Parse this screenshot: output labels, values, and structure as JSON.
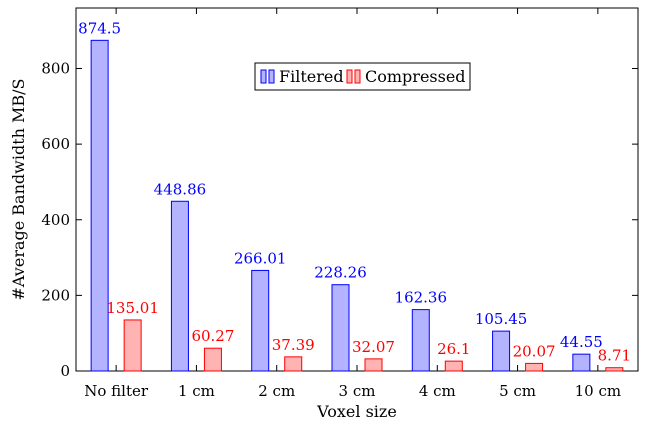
{
  "chart_data": {
    "type": "bar",
    "title": "",
    "xlabel": "Voxel size",
    "ylabel": "#Average Bandwidth MB/S",
    "categories": [
      "No filter",
      "1 cm",
      "2 cm",
      "3 cm",
      "4 cm",
      "5 cm",
      "10 cm"
    ],
    "series": [
      {
        "name": "Filtered",
        "values": [
          874.5,
          448.86,
          266.01,
          228.26,
          162.36,
          105.45,
          44.55
        ],
        "labels": [
          "874.5",
          "448.86",
          "266.01",
          "228.26",
          "162.36",
          "105.45",
          "44.55"
        ],
        "fill": "#b3b3ff",
        "stroke": "#0000ff"
      },
      {
        "name": "Compressed",
        "values": [
          135.01,
          60.27,
          37.39,
          32.07,
          26.1,
          20.07,
          8.71
        ],
        "labels": [
          "135.01",
          "60.27",
          "37.39",
          "32.07",
          "26.1",
          "20.07",
          "8.71"
        ],
        "fill": "#ffb3b3",
        "stroke": "#ff0000"
      }
    ],
    "ylim": [
      0,
      960
    ],
    "yticks": [
      0,
      200,
      400,
      600,
      800
    ],
    "grid": false,
    "legend": "top-center"
  }
}
